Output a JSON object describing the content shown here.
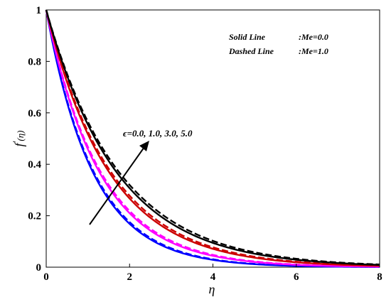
{
  "chart_data": {
    "type": "line",
    "xlabel": "η",
    "ylabel_main": "f",
    "ylabel_sup": "′",
    "ylabel_arg": "(η)",
    "xlim": [
      0,
      8
    ],
    "ylim": [
      0,
      1
    ],
    "x_ticks": [
      "0",
      "2",
      "4",
      "6",
      "8"
    ],
    "y_ticks": [
      "0",
      "0.2",
      "0.4",
      "0.6",
      "0.8",
      "1"
    ],
    "grid": false,
    "legend": {
      "placement": "top-right",
      "solid_label": "Solid Line",
      "solid_value": ":Me=0.0",
      "dashed_label": "Dashed Line",
      "dashed_value": ":Me=1.0"
    },
    "annotation": "ϵ=0.0, 1.0, 3.0, 5.0",
    "series": [
      {
        "color": "#0000ff",
        "decay": [
          0.89,
          0.87
        ]
      },
      {
        "color": "#ff00ff",
        "decay": [
          0.78,
          0.76
        ]
      },
      {
        "color": "#cc0000",
        "decay": [
          0.66,
          0.64
        ]
      },
      {
        "color": "#000000",
        "decay": [
          0.59,
          0.57
        ]
      }
    ]
  }
}
